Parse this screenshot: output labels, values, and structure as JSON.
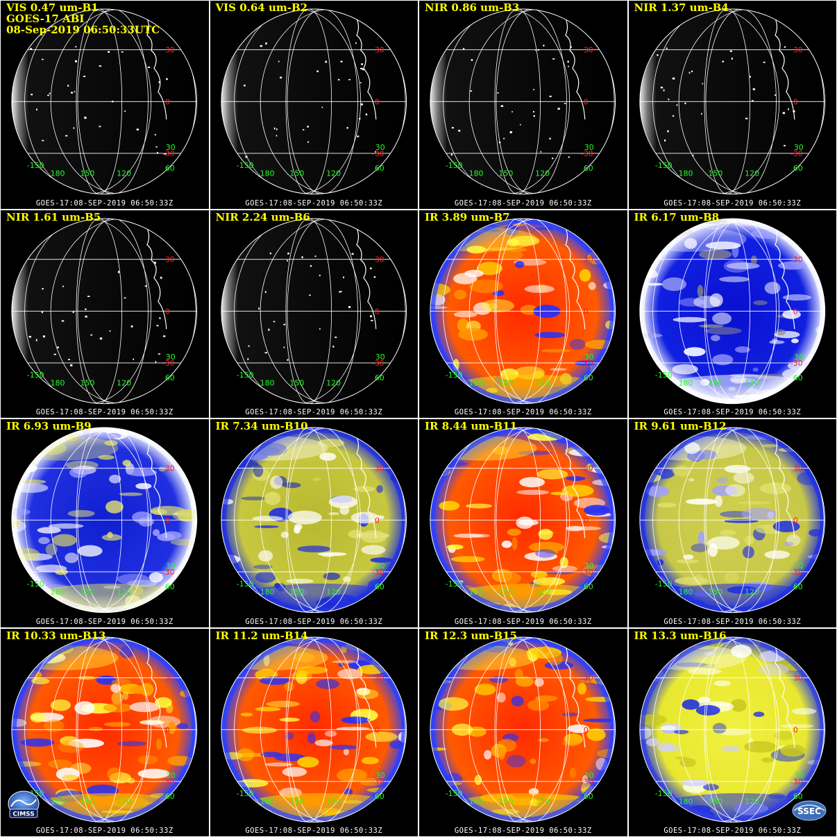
{
  "header": {
    "satellite": "GOES-17 ABI",
    "datetime": "08-Sep-2019 06:50:33UTC"
  },
  "footer_text": "GOES-17:08-SEP-2019 06:50:33Z",
  "grid_labels": {
    "lat": [
      "30",
      "0",
      "-30"
    ],
    "lon": [
      "-150",
      "180",
      "150",
      "120",
      "60"
    ],
    "lat_green": "30"
  },
  "panels": [
    {
      "label": "VIS 0.47 um-B1",
      "style": "vis"
    },
    {
      "label": "VIS 0.64 um-B2",
      "style": "vis"
    },
    {
      "label": "NIR 0.86 um-B3",
      "style": "vis"
    },
    {
      "label": "NIR 1.37 um-B4",
      "style": "vis"
    },
    {
      "label": "NIR 1.61 um-B5",
      "style": "vis"
    },
    {
      "label": "NIR 2.24 um-B6",
      "style": "vis"
    },
    {
      "label": "IR 3.89 um-B7",
      "style": "ir-warm"
    },
    {
      "label": "IR 6.17 um-B8",
      "style": "wv-blue"
    },
    {
      "label": "IR 6.93 um-B9",
      "style": "wv-mid"
    },
    {
      "label": "IR 7.34 um-B10",
      "style": "wv-low"
    },
    {
      "label": "IR 8.44 um-B11",
      "style": "ir-warm"
    },
    {
      "label": "IR 9.61 um-B12",
      "style": "ozone"
    },
    {
      "label": "IR 10.33 um-B13",
      "style": "ir-warm"
    },
    {
      "label": "IR 11.2 um-B14",
      "style": "ir-warm"
    },
    {
      "label": "IR 12.3 um-B15",
      "style": "ir-warm"
    },
    {
      "label": "IR 13.3 um-B16",
      "style": "co2"
    }
  ],
  "logos": {
    "left": "CIMSS",
    "right": "SSEC"
  },
  "colors": {
    "title": "#ffff00",
    "lat_label": "#ff2020",
    "lon_label": "#20ff20",
    "grid": "#ffffff"
  }
}
